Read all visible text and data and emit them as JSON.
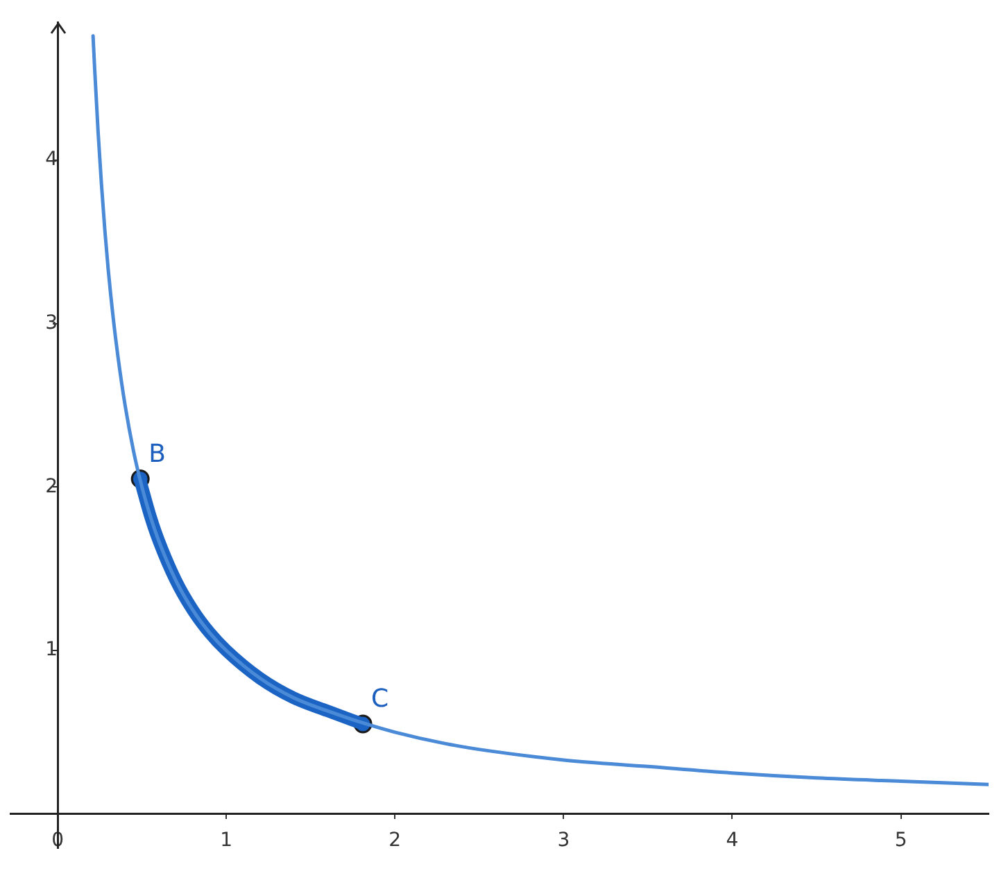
{
  "chart_data": {
    "type": "line",
    "xlim": [
      -0.28,
      5.52
    ],
    "ylim": [
      -0.21,
      4.84
    ],
    "xticks": [
      0,
      1,
      2,
      3,
      4,
      5
    ],
    "yticks": [
      1,
      2,
      3,
      4
    ],
    "grid": false,
    "legend": false,
    "series": [
      {
        "type": "line",
        "color": "#4a8ad6",
        "x": [
          0.21,
          0.22,
          0.24,
          0.26,
          0.28,
          0.3,
          0.33,
          0.36,
          0.4,
          0.45,
          0.5,
          0.55,
          0.6,
          0.7,
          0.8,
          0.9,
          1,
          1.2,
          1.4,
          1.6,
          1.8,
          2,
          2.3,
          2.6,
          3,
          3.5,
          4,
          4.5,
          5,
          5.52
        ],
        "values": [
          4.76,
          4.55,
          4.17,
          3.85,
          3.57,
          3.33,
          3.03,
          2.78,
          2.5,
          2.22,
          2,
          1.82,
          1.67,
          1.43,
          1.25,
          1.11,
          1,
          0.83,
          0.71,
          0.63,
          0.56,
          0.5,
          0.43,
          0.38,
          0.33,
          0.29,
          0.25,
          0.22,
          0.2,
          0.18
        ]
      },
      {
        "type": "line",
        "color": "#1c64c4",
        "x": [
          0.49,
          0.55,
          0.6,
          0.7,
          0.8,
          0.9,
          1,
          1.2,
          1.4,
          1.6,
          1.81
        ],
        "values": [
          2.04,
          1.82,
          1.67,
          1.43,
          1.25,
          1.11,
          1,
          0.83,
          0.71,
          0.63,
          0.55
        ]
      },
      {
        "type": "scatter",
        "name": "B",
        "color": "#1c5fbf",
        "x": [
          0.49
        ],
        "values": [
          2.05
        ]
      },
      {
        "type": "scatter",
        "name": "C",
        "color": "#1c5fbf",
        "x": [
          1.81
        ],
        "values": [
          0.55
        ]
      }
    ]
  }
}
